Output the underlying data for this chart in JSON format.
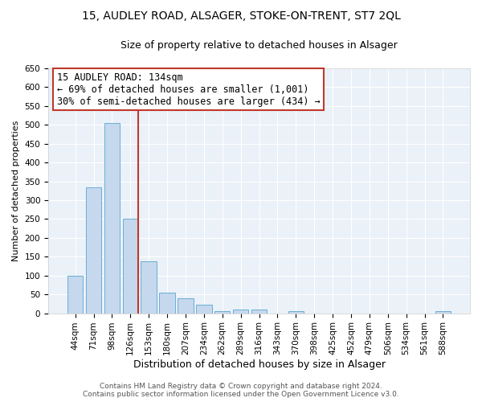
{
  "title1": "15, AUDLEY ROAD, ALSAGER, STOKE-ON-TRENT, ST7 2QL",
  "title2": "Size of property relative to detached houses in Alsager",
  "xlabel": "Distribution of detached houses by size in Alsager",
  "ylabel": "Number of detached properties",
  "categories": [
    "44sqm",
    "71sqm",
    "98sqm",
    "126sqm",
    "153sqm",
    "180sqm",
    "207sqm",
    "234sqm",
    "262sqm",
    "289sqm",
    "316sqm",
    "343sqm",
    "370sqm",
    "398sqm",
    "425sqm",
    "452sqm",
    "479sqm",
    "506sqm",
    "534sqm",
    "561sqm",
    "588sqm"
  ],
  "values": [
    100,
    335,
    505,
    250,
    138,
    55,
    40,
    22,
    5,
    10,
    10,
    0,
    5,
    0,
    0,
    0,
    0,
    0,
    0,
    0,
    5
  ],
  "bar_color": "#c5d8ed",
  "bar_edge_color": "#6aaed6",
  "vline_x_idx": 3,
  "vline_color": "#c0392b",
  "annotation_line1": "15 AUDLEY ROAD: 134sqm",
  "annotation_line2": "← 69% of detached houses are smaller (1,001)",
  "annotation_line3": "30% of semi-detached houses are larger (434) →",
  "annotation_box_color": "#c0392b",
  "ylim": [
    0,
    650
  ],
  "yticks": [
    0,
    50,
    100,
    150,
    200,
    250,
    300,
    350,
    400,
    450,
    500,
    550,
    600,
    650
  ],
  "footer_line1": "Contains HM Land Registry data © Crown copyright and database right 2024.",
  "footer_line2": "Contains public sector information licensed under the Open Government Licence v3.0.",
  "plot_bg_color": "#eaf1f8",
  "title1_fontsize": 10,
  "title2_fontsize": 9,
  "xlabel_fontsize": 9,
  "ylabel_fontsize": 8,
  "tick_fontsize": 7.5,
  "footer_fontsize": 6.5,
  "annotation_fontsize": 8.5
}
